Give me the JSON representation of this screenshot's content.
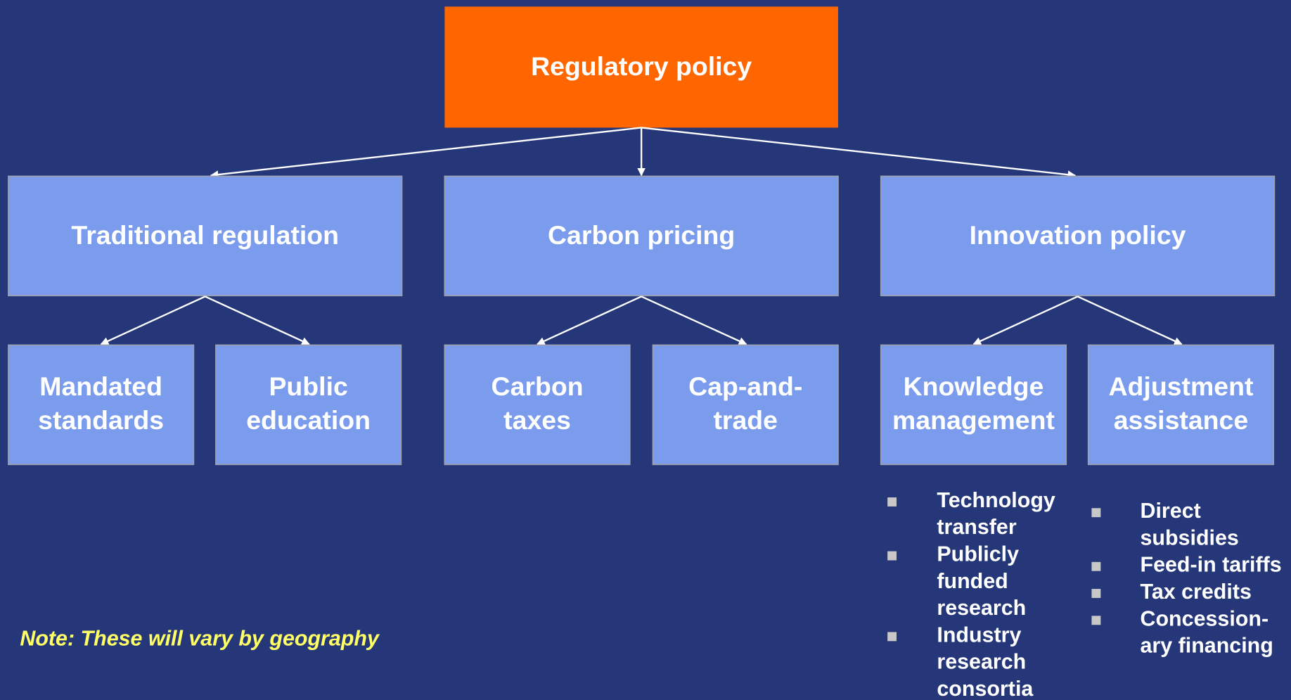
{
  "root": {
    "label": "Regulatory policy"
  },
  "branches": [
    {
      "label": "Traditional regulation",
      "children": [
        {
          "lines": [
            "Mandated",
            "standards"
          ]
        },
        {
          "lines": [
            "Public",
            "education"
          ]
        }
      ]
    },
    {
      "label": "Carbon pricing",
      "children": [
        {
          "lines": [
            "Carbon",
            "taxes"
          ]
        },
        {
          "lines": [
            "Cap-and-",
            "trade"
          ]
        }
      ]
    },
    {
      "label": "Innovation policy",
      "children": [
        {
          "lines": [
            "Knowledge",
            "management"
          ]
        },
        {
          "lines": [
            "Adjustment",
            "assistance"
          ]
        }
      ]
    }
  ],
  "bullets": [
    {
      "items": [
        {
          "lines": [
            "Technology",
            "transfer"
          ]
        },
        {
          "lines": [
            "Publicly",
            "funded",
            "research"
          ]
        },
        {
          "lines": [
            "Industry",
            "research",
            "consortia"
          ]
        }
      ]
    },
    {
      "items": [
        {
          "lines": [
            "Direct",
            "subsidies"
          ]
        },
        {
          "lines": [
            "Feed-in tariffs"
          ]
        },
        {
          "lines": [
            "Tax credits"
          ]
        },
        {
          "lines": [
            "Concession-",
            "ary financing"
          ]
        }
      ]
    }
  ],
  "note": "Note: These will vary by geography"
}
